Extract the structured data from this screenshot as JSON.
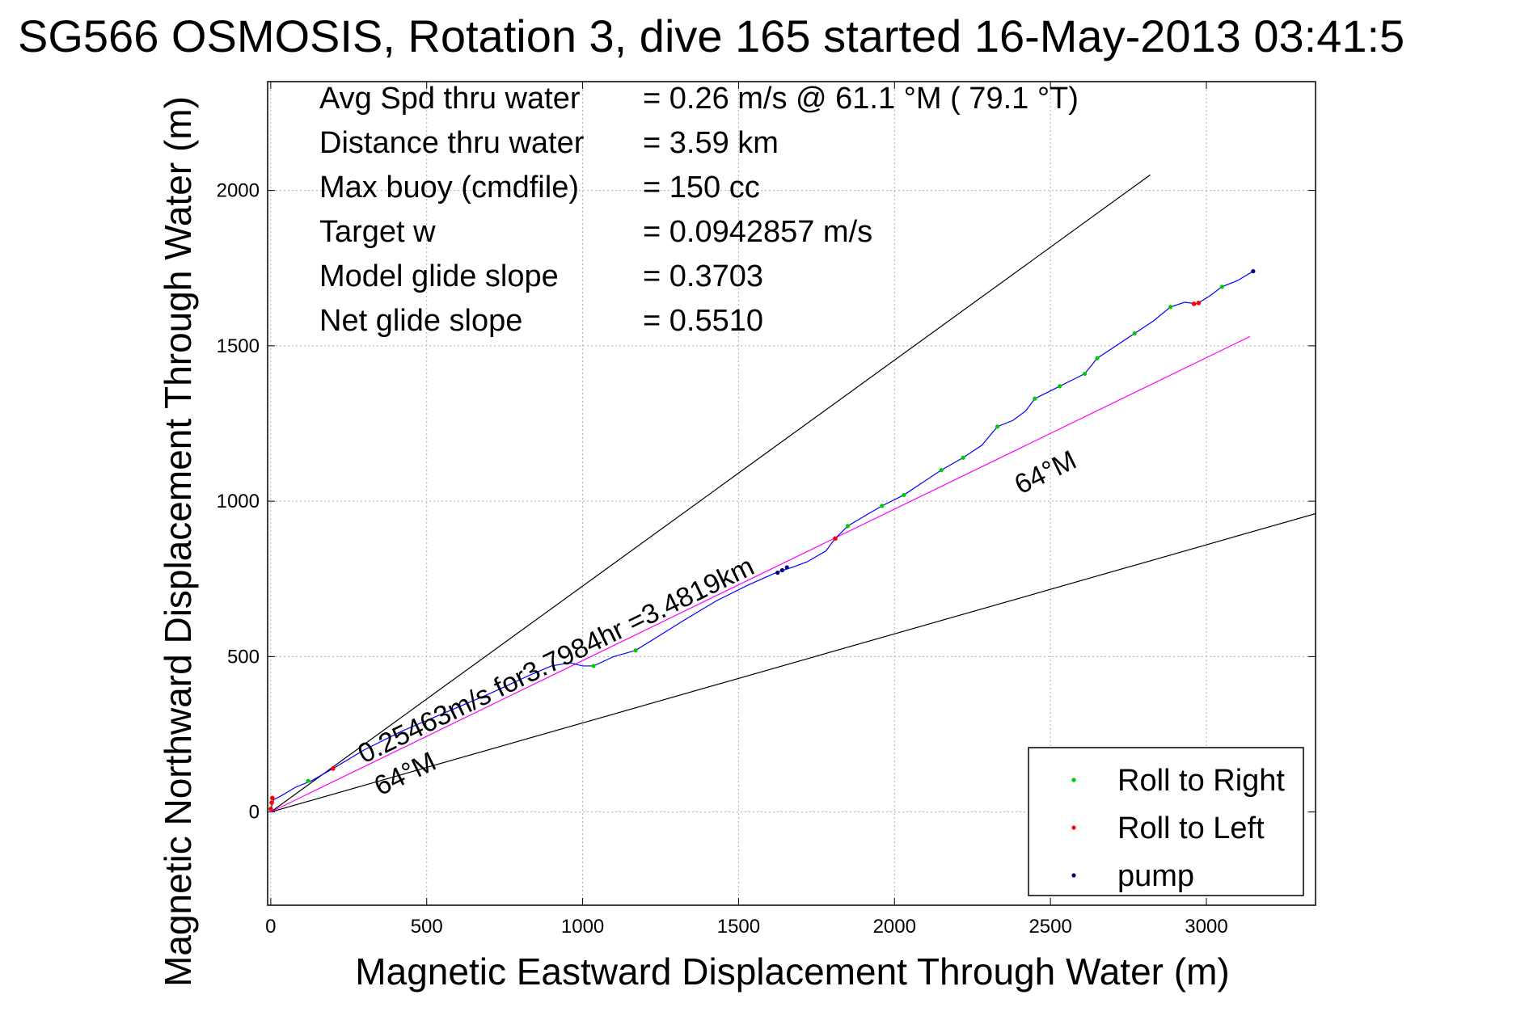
{
  "chart_data": {
    "type": "line",
    "title": "SG566 OSMOSIS, Rotation 3, dive 165 started 16-May-2013 03:41:5",
    "xlabel": "Magnetic Eastward Displacement Through Water (m)",
    "ylabel": "Magnetic Northward Displacement Through Water (m)",
    "xlim": [
      -10,
      3350
    ],
    "ylim": [
      -300,
      2350
    ],
    "xticks": [
      0,
      500,
      1000,
      1500,
      2000,
      2500,
      3000
    ],
    "yticks": [
      0,
      500,
      1000,
      1500,
      2000
    ],
    "grid": true,
    "legend_placement": "bottom-right",
    "colors": {
      "track": "#0000ff",
      "roll_right": "#00cc00",
      "roll_left": "#ff0000",
      "pump": "#000080",
      "mean_course": "#ff00ff",
      "bounds": "#000000",
      "grid": "#b0b0b0"
    },
    "info": [
      {
        "label": "Avg Spd thru water",
        "value": "=  0.26 m/s @  61.1 °M ( 79.1 °T)"
      },
      {
        "label": "Distance thru water",
        "value": "=  3.59 km"
      },
      {
        "label": "Max buoy (cmdfile)",
        "value": "= 150 cc"
      },
      {
        "label": "Target w",
        "value": "= 0.0942857 m/s"
      },
      {
        "label": "Model glide slope",
        "value": "= 0.3703"
      },
      {
        "label": "Net glide slope",
        "value": "= 0.5510"
      }
    ],
    "annotations": {
      "course_text": "0.25463m/s for3.7984hr =3.4819km",
      "heading_upper": "64°M",
      "heading_lower": "64°M"
    },
    "series": [
      {
        "name": "track",
        "x": [
          0,
          5,
          10,
          30,
          80,
          130,
          200,
          300,
          420,
          560,
          700,
          830,
          900,
          960,
          1000,
          1035,
          1100,
          1170,
          1250,
          1330,
          1430,
          1530,
          1620,
          1680,
          1720,
          1780,
          1810,
          1850,
          1900,
          1960,
          2030,
          2090,
          2150,
          2220,
          2280,
          2330,
          2380,
          2420,
          2450,
          2490,
          2530,
          2570,
          2610,
          2650,
          2710,
          2770,
          2830,
          2885,
          2930,
          2970,
          3010,
          3050,
          3100,
          3150
        ],
        "y": [
          10,
          25,
          40,
          50,
          80,
          100,
          140,
          200,
          260,
          320,
          380,
          440,
          470,
          480,
          470,
          470,
          500,
          520,
          570,
          620,
          680,
          730,
          770,
          790,
          805,
          840,
          880,
          920,
          950,
          985,
          1020,
          1060,
          1100,
          1140,
          1180,
          1240,
          1260,
          1290,
          1330,
          1350,
          1370,
          1390,
          1410,
          1460,
          1500,
          1540,
          1580,
          1625,
          1640,
          1635,
          1660,
          1690,
          1710,
          1740
        ]
      },
      {
        "name": "Roll to Right",
        "x": [
          120,
          1035,
          1170,
          1850,
          1960,
          2030,
          2150,
          2220,
          2330,
          2450,
          2530,
          2610,
          2650,
          2770,
          2885,
          3050,
          3150
        ],
        "y": [
          100,
          470,
          520,
          920,
          985,
          1020,
          1100,
          1140,
          1240,
          1330,
          1370,
          1410,
          1460,
          1540,
          1625,
          1690,
          1740
        ]
      },
      {
        "name": "Roll to Left",
        "x": [
          0,
          3,
          5,
          200,
          1810,
          2960,
          2975
        ],
        "y": [
          10,
          30,
          45,
          140,
          880,
          1635,
          1638
        ]
      },
      {
        "name": "pump",
        "x": [
          1625,
          1640,
          1655,
          3150
        ],
        "y": [
          770,
          778,
          787,
          1740
        ]
      },
      {
        "name": "mean course",
        "x": [
          0,
          3140
        ],
        "y": [
          0,
          1530
        ]
      },
      {
        "name": "upper bound",
        "x": [
          0,
          2820
        ],
        "y": [
          0,
          2050
        ]
      },
      {
        "name": "lower bound",
        "x": [
          0,
          3350
        ],
        "y": [
          0,
          960
        ]
      }
    ],
    "legend": [
      "Roll to Right",
      "Roll to Left",
      "pump"
    ]
  }
}
